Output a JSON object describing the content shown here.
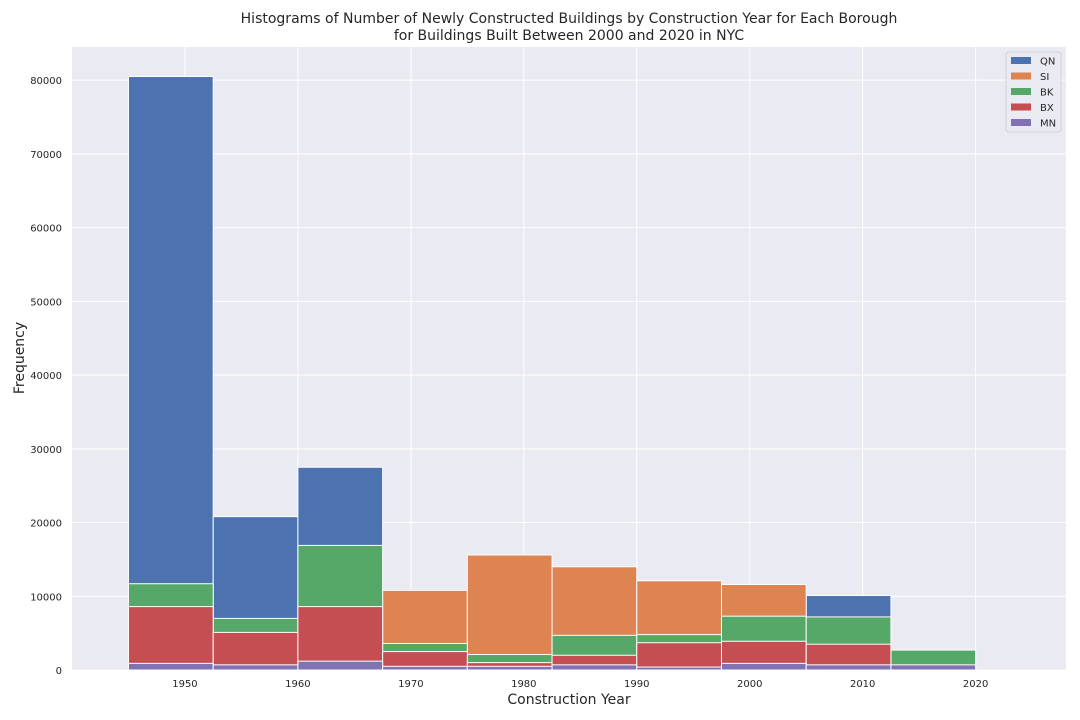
{
  "chart_data": {
    "type": "bar",
    "title_line1": "Histograms of Number of Newly Constructed Buildings by Construction Year for Each Borough",
    "title_line2": "for Buildings Built Between 2000 and 2020 in NYC",
    "xlabel": "Construction Year",
    "ylabel": "Frequency",
    "xlim": [
      1940,
      2028
    ],
    "ylim": [
      0,
      84500
    ],
    "x_ticks": [
      1950,
      1960,
      1970,
      1980,
      1990,
      2000,
      2010,
      2020
    ],
    "y_ticks": [
      0,
      10000,
      20000,
      30000,
      40000,
      50000,
      60000,
      70000,
      80000
    ],
    "bin_edges": [
      1945,
      1952.5,
      1960,
      1967.5,
      1975,
      1982.5,
      1990,
      1997.5,
      2005,
      2012.5,
      2020
    ],
    "grid": true,
    "legend_position": "top-right",
    "series": [
      {
        "name": "QN",
        "color": "#4c72b0",
        "values": [
          80500,
          20800,
          27500,
          0,
          0,
          0,
          0,
          0,
          10100,
          0
        ]
      },
      {
        "name": "SI",
        "color": "#dd8452",
        "values": [
          0,
          0,
          0,
          10800,
          15600,
          14000,
          12100,
          11600,
          0,
          0
        ]
      },
      {
        "name": "BK",
        "color": "#55a868",
        "values": [
          11700,
          7000,
          16900,
          3600,
          2100,
          4700,
          4800,
          7300,
          7200,
          2700
        ]
      },
      {
        "name": "BX",
        "color": "#c44e52",
        "values": [
          8600,
          5100,
          8600,
          2500,
          1000,
          2000,
          3700,
          3900,
          3500,
          500
        ]
      },
      {
        "name": "MN",
        "color": "#8172b3",
        "values": [
          900,
          700,
          1200,
          500,
          500,
          700,
          400,
          900,
          700,
          700
        ]
      }
    ]
  }
}
